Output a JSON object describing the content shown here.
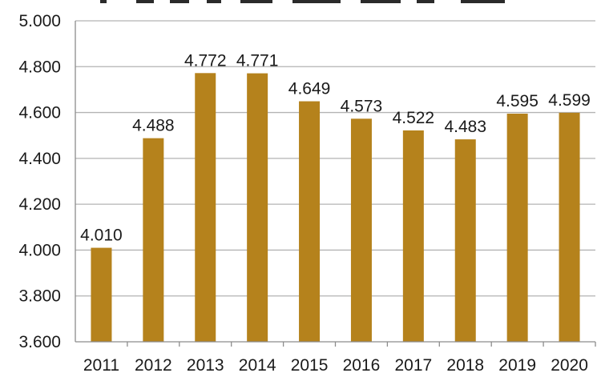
{
  "chart_data": {
    "type": "bar",
    "title": "",
    "xlabel": "",
    "ylabel": "",
    "categories": [
      "2011",
      "2012",
      "2013",
      "2014",
      "2015",
      "2016",
      "2017",
      "2018",
      "2019",
      "2020"
    ],
    "values": [
      4.01,
      4.488,
      4.772,
      4.771,
      4.649,
      4.573,
      4.522,
      4.483,
      4.595,
      4.599
    ],
    "value_labels": [
      "4.010",
      "4.488",
      "4.772",
      "4.771",
      "4.649",
      "4.573",
      "4.522",
      "4.483",
      "4.595",
      "4.599"
    ],
    "ylim": [
      3.6,
      5.0
    ],
    "yticks": [
      3.6,
      3.8,
      4.0,
      4.2,
      4.4,
      4.6,
      4.8,
      5.0
    ],
    "ytick_labels": [
      "3.600",
      "3.800",
      "4.000",
      "4.200",
      "4.400",
      "4.600",
      "4.800",
      "5.000"
    ],
    "grid": true,
    "bar_color": "#B5821C",
    "grid_color": "#b3b3b3",
    "axis_color": "#8c8c8c"
  }
}
